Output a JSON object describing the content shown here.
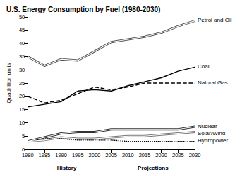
{
  "chart_data": {
    "type": "line",
    "title": "U.S. Energy Consumption by Fuel (1980-2030)",
    "y_label": "Quadrillion units",
    "annotations": [
      "History",
      "Projections"
    ],
    "x": [
      1980,
      1985,
      1990,
      1995,
      2000,
      2005,
      2010,
      2015,
      2020,
      2025,
      2030
    ],
    "xlim": [
      1980,
      2030
    ],
    "xticks": [
      1980,
      1985,
      1990,
      1995,
      2000,
      2005,
      2010,
      2015,
      2020,
      2025,
      2030
    ],
    "ylim": [
      0,
      50
    ],
    "yticks": [
      0,
      5,
      10,
      15,
      20,
      25,
      30,
      35,
      40,
      45,
      50
    ],
    "grid": false,
    "series": [
      {
        "name": "Petrol and Oil",
        "color": "#555555",
        "line_style": "double",
        "values": [
          35,
          31.5,
          34,
          33.5,
          37,
          40.5,
          41.5,
          42.5,
          44,
          46.5,
          48.5
        ]
      },
      {
        "name": "Coal",
        "color": "#000000",
        "line_style": "solid",
        "values": [
          16,
          17,
          18,
          22,
          22.5,
          22,
          24,
          25.5,
          27,
          29.5,
          31
        ]
      },
      {
        "name": "Natural Gas",
        "color": "#000000",
        "line_style": "dashed",
        "values": [
          20,
          17.5,
          18.5,
          21,
          23.5,
          22.5,
          23.5,
          25,
          25,
          25,
          25
        ]
      },
      {
        "name": "Nuclear",
        "color": "#333333",
        "line_style": "double",
        "values": [
          3,
          4.5,
          6,
          6.5,
          6.5,
          7.5,
          7.5,
          7.5,
          7.5,
          7.5,
          8.5
        ]
      },
      {
        "name": "Solar/Wind",
        "color": "#777777",
        "line_style": "double",
        "values": [
          3,
          3.5,
          4.5,
          4,
          4,
          4.5,
          5,
          5,
          5.5,
          6,
          6.5
        ]
      },
      {
        "name": "Hydropower",
        "color": "#000000",
        "line_style": "dotted",
        "values": [
          3,
          4,
          4,
          3.5,
          3.5,
          3.5,
          3,
          3,
          3,
          3,
          3
        ]
      }
    ]
  }
}
